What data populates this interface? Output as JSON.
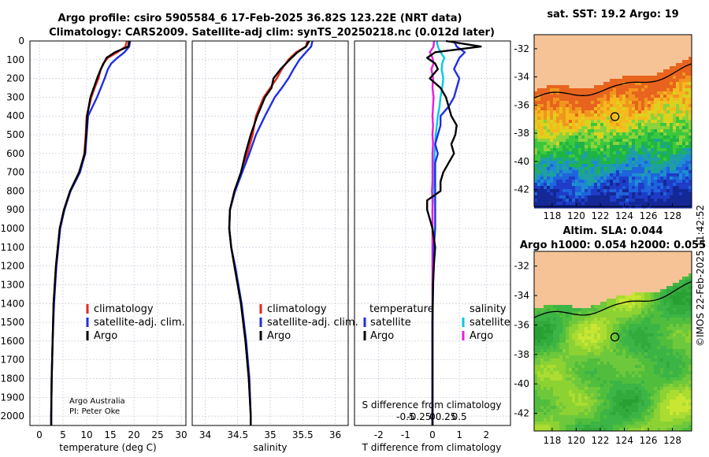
{
  "figure": {
    "title_line1": "Argo profile: csiro 5905584_6 17-Feb-2025 36.82S 123.22E (NRT data)",
    "title_line2": "Climatology: CARS2009. Satellite-adj clim: synTS_20250218.nc (0.012d later)",
    "credit_line1": "Argo Australia",
    "credit_line2": "PI: Peter Oke",
    "watermark": "©IMOS 22-Feb-2025 11:42:52"
  },
  "colors": {
    "climatology": "#e8261a",
    "satellite": "#1f2ee6",
    "argo": "#000000",
    "sat_temp": "#00c8e6",
    "argo_salinity": "#e61edc",
    "land": "#f5c396",
    "grid": "#c8c8dc"
  },
  "depth_axis": {
    "ticks": [
      "0",
      "100",
      "200",
      "300",
      "400",
      "500",
      "600",
      "700",
      "800",
      "900",
      "1000",
      "1100",
      "1200",
      "1300",
      "1400",
      "1500",
      "1600",
      "1700",
      "1800",
      "1900",
      "2000"
    ],
    "range": [
      0,
      2050
    ]
  },
  "chart_data": [
    {
      "type": "line",
      "panel": "temperature",
      "xlabel": "temperature (deg C)",
      "ylabel": "depth",
      "xlim": [
        -2,
        31
      ],
      "ylim": [
        2050,
        0
      ],
      "xticks": [
        "0",
        "5",
        "10",
        "15",
        "20",
        "25",
        "30"
      ],
      "legend": [
        "climatology",
        "satellite-adj. clim.",
        "Argo"
      ],
      "legend_position": "lower-right",
      "depth": [
        0,
        30,
        60,
        90,
        120,
        150,
        200,
        250,
        300,
        400,
        500,
        600,
        700,
        800,
        900,
        1000,
        1200,
        1400,
        1600,
        1800,
        2000,
        2050
      ],
      "series": [
        {
          "name": "climatology",
          "values": [
            18.5,
            18.2,
            16.5,
            14.5,
            13.5,
            13.0,
            12.5,
            11.7,
            11.0,
            10.0,
            9.8,
            9.5,
            8.5,
            6.5,
            5.2,
            4.3,
            3.5,
            3.0,
            2.8,
            2.6,
            2.5,
            2.5
          ]
        },
        {
          "name": "satellite-adj. clim.",
          "values": [
            19.2,
            19.0,
            18.0,
            16.5,
            15.2,
            14.5,
            13.8,
            13.0,
            12.2,
            10.3,
            10.0,
            9.7,
            8.6,
            6.6,
            5.3,
            4.4,
            3.6,
            3.1,
            2.8,
            2.6,
            2.5,
            2.5
          ]
        },
        {
          "name": "Argo",
          "values": [
            19.0,
            18.8,
            16.0,
            14.2,
            13.6,
            13.0,
            12.2,
            11.5,
            10.8,
            10.1,
            9.9,
            9.6,
            8.4,
            6.5,
            5.2,
            4.3,
            3.5,
            3.0,
            2.8,
            2.6,
            2.5,
            2.5
          ]
        }
      ]
    },
    {
      "type": "line",
      "panel": "salinity",
      "xlabel": "salinity",
      "xlim": [
        33.8,
        36.2
      ],
      "ylim": [
        2050,
        0
      ],
      "xticks": [
        "34",
        "34.5",
        "35",
        "35.5",
        "36"
      ],
      "xtick_values": [
        34,
        34.5,
        35,
        35.5,
        36
      ],
      "legend": [
        "climatology",
        "satellite-adj. clim.",
        "Argo"
      ],
      "legend_position": "lower-right",
      "depth": [
        0,
        30,
        60,
        100,
        150,
        200,
        250,
        300,
        400,
        500,
        600,
        700,
        800,
        900,
        1000,
        1100,
        1200,
        1400,
        1600,
        1800,
        2000,
        2050
      ],
      "series": [
        {
          "name": "climatology",
          "values": [
            35.57,
            35.55,
            35.4,
            35.28,
            35.18,
            35.1,
            35.0,
            34.9,
            34.78,
            34.73,
            34.65,
            34.56,
            34.45,
            34.38,
            34.37,
            34.4,
            34.45,
            34.55,
            34.62,
            34.67,
            34.7,
            34.7
          ]
        },
        {
          "name": "satellite-adj. clim.",
          "values": [
            35.65,
            35.63,
            35.55,
            35.45,
            35.36,
            35.28,
            35.18,
            35.07,
            34.92,
            34.78,
            34.68,
            34.57,
            34.46,
            34.38,
            34.37,
            34.4,
            34.46,
            34.56,
            34.63,
            34.68,
            34.7,
            34.7
          ]
        },
        {
          "name": "Argo",
          "values": [
            35.6,
            35.55,
            35.42,
            35.3,
            35.16,
            35.05,
            35.02,
            34.92,
            34.8,
            34.7,
            34.62,
            34.55,
            34.45,
            34.38,
            34.37,
            34.4,
            34.45,
            34.55,
            34.62,
            34.67,
            34.7,
            34.7
          ]
        }
      ]
    },
    {
      "type": "line",
      "panel": "difference",
      "xlabel": "T difference from climatology",
      "xlabel_top": "S difference from climatology",
      "xlim": [
        -2.9,
        2.9
      ],
      "ylim": [
        2050,
        0
      ],
      "xticks": [
        "-2",
        "-1",
        "0",
        "1",
        "2"
      ],
      "xtick_values": [
        -2,
        -1,
        0,
        1,
        2
      ],
      "sticks": [
        "-0.5",
        "-0.25",
        "0",
        "0.25",
        "0.5"
      ],
      "stick_values": [
        -0.5,
        -0.25,
        0,
        0.25,
        0.5
      ],
      "legend_temperature_title": "temperature",
      "legend_salinity_title": "salinity",
      "legend_temperature": [
        "satellite",
        "Argo"
      ],
      "legend_salinity": [
        "satellite",
        "Argo"
      ],
      "depth": [
        0,
        30,
        60,
        90,
        120,
        150,
        200,
        250,
        300,
        350,
        400,
        450,
        500,
        550,
        600,
        650,
        700,
        750,
        800,
        850,
        900,
        950,
        1000,
        1100,
        1200,
        1300,
        1500,
        1700,
        1900,
        2050
      ],
      "series": [
        {
          "name": "T satellite",
          "values": [
            0.8,
            0.9,
            1.2,
            1.0,
            0.9,
            0.8,
            1.0,
            0.9,
            0.8,
            0.6,
            0.3,
            0.3,
            0.2,
            0.1,
            0.2,
            0.1,
            0.1,
            0.1,
            0.1,
            0.1,
            0.1,
            0.1,
            0.1,
            0.05,
            0.05,
            0.02,
            0.0,
            0.0,
            0.0,
            0.0
          ]
        },
        {
          "name": "T Argo",
          "values": [
            0.5,
            1.8,
            0.1,
            -0.2,
            0.1,
            0.2,
            -0.1,
            0.3,
            0.5,
            0.6,
            0.7,
            0.9,
            0.85,
            0.7,
            0.8,
            0.6,
            0.4,
            0.3,
            0.3,
            -0.2,
            -0.2,
            -0.1,
            0.0,
            0.1,
            0.05,
            0.02,
            0.0,
            0.0,
            0.0,
            0.0
          ]
        },
        {
          "name": "S satellite",
          "values": [
            0.08,
            0.1,
            0.15,
            0.22,
            0.18,
            0.17,
            0.2,
            0.18,
            0.15,
            0.13,
            0.1,
            0.08,
            0.06,
            0.05,
            0.04,
            0.03,
            0.02,
            0.02,
            0.01,
            0.01,
            0.0,
            0.0,
            0.0,
            0.0,
            0.0,
            0.0,
            0.0,
            0.0,
            0.0,
            0.0
          ]
        },
        {
          "name": "S Argo",
          "values": [
            0.03,
            0.02,
            -0.05,
            0.0,
            0.02,
            -0.02,
            0.01,
            0.0,
            0.02,
            0.01,
            0.0,
            0.01,
            0.0,
            0.01,
            0.0,
            0.0,
            0.0,
            0.0,
            -0.01,
            0.0,
            0.0,
            0.0,
            0.0,
            0.0,
            0.0,
            0.0,
            0.0,
            0.0,
            0.0,
            0.0
          ]
        }
      ]
    }
  ],
  "map_sst": {
    "title": "sat. SST: 19.2 Argo: 19",
    "yticks": [
      "-32",
      "-34",
      "-36",
      "-38",
      "-40",
      "-42"
    ],
    "ytick_values": [
      -32,
      -34,
      -36,
      -38,
      -40,
      -42
    ],
    "xticks": [
      "118",
      "120",
      "122",
      "124",
      "126",
      "128"
    ],
    "xtick_values": [
      118,
      120,
      122,
      124,
      126,
      128
    ],
    "lon_range": [
      116.5,
      129.6
    ],
    "lat_range": [
      -43.2,
      -31.0
    ],
    "argo_lon": 123.22,
    "argo_lat": -36.82
  },
  "map_sla": {
    "title1": "Altim. SLA: 0.044",
    "title2": "Argo h1000: 0.054 h2000: 0.055",
    "yticks": [
      "-32",
      "-34",
      "-36",
      "-38",
      "-40",
      "-42"
    ],
    "ytick_values": [
      -32,
      -34,
      -36,
      -38,
      -40,
      -42
    ],
    "xticks": [
      "118",
      "120",
      "122",
      "124",
      "126",
      "128"
    ],
    "xtick_values": [
      118,
      120,
      122,
      124,
      126,
      128
    ],
    "lon_range": [
      116.5,
      129.6
    ],
    "lat_range": [
      -43.2,
      -31.0
    ],
    "argo_lon": 123.22,
    "argo_lat": -36.82
  }
}
